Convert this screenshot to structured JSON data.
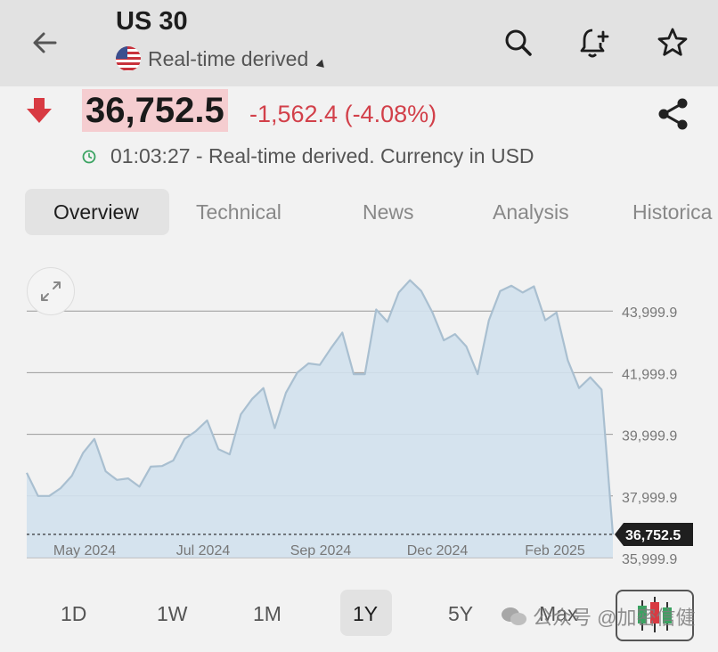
{
  "header": {
    "symbol": "US 30",
    "source": "Real-time derived",
    "icons": [
      "back-arrow-icon",
      "search-icon",
      "bell-plus-icon",
      "star-icon"
    ]
  },
  "quote": {
    "price": "36,752.5",
    "change": "-1,562.4 (-4.08%)",
    "time": "01:03:27 - Real-time derived. Currency in USD",
    "colors": {
      "negative": "#d2404a",
      "price_highlight": "#f5cdd0"
    }
  },
  "tabs": [
    {
      "label": "Overview",
      "active": true
    },
    {
      "label": "Technical"
    },
    {
      "label": "News"
    },
    {
      "label": "Analysis"
    },
    {
      "label": "Historica"
    }
  ],
  "chart_data": {
    "type": "area",
    "x_tick_labels": [
      "May 2024",
      "Jul 2024",
      "Sep 2024",
      "Dec 2024",
      "Feb 2025"
    ],
    "y_tick_labels": [
      "43,999.9",
      "41,999.9",
      "39,999.9",
      "37,999.9",
      "35,999.9"
    ],
    "ylim": [
      35999.9,
      46000
    ],
    "last_value_label": "36,752.5",
    "values": [
      38750,
      38000,
      38000,
      38250,
      38650,
      39400,
      39850,
      38800,
      38520,
      38570,
      38300,
      38950,
      38970,
      39150,
      39850,
      40100,
      40450,
      39520,
      39350,
      40650,
      41150,
      41500,
      40200,
      41350,
      42000,
      42300,
      42250,
      42800,
      43300,
      41950,
      41950,
      44050,
      43650,
      44600,
      45000,
      44650,
      43950,
      43050,
      43250,
      42850,
      41950,
      43700,
      44650,
      44820,
      44600,
      44800,
      43700,
      43950,
      42400,
      41500,
      41850,
      41450,
      36752.5
    ],
    "grid": true,
    "color": "#a9bfd0"
  },
  "ranges": [
    {
      "label": "1D"
    },
    {
      "label": "1W"
    },
    {
      "label": "1M"
    },
    {
      "label": "1Y",
      "active": true
    },
    {
      "label": "5Y"
    },
    {
      "label": "Max"
    }
  ],
  "watermark": "公众号 @加密信健"
}
